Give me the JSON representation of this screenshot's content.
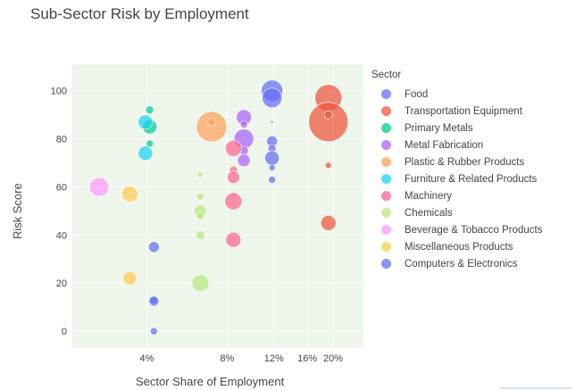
{
  "chart_data": {
    "type": "scatter",
    "title": "Sub-Sector Risk by Employment",
    "xlabel": "Sector Share of Employment",
    "ylabel": "Risk Score",
    "x_scale": "log",
    "xlim": [
      0.021,
      0.26
    ],
    "ylim": [
      -7,
      111
    ],
    "x_tick_labels": [
      {
        "value": 0.04,
        "label": "4%"
      },
      {
        "value": 0.08,
        "label": "8%"
      },
      {
        "value": 0.12,
        "label": "12%"
      },
      {
        "value": 0.16,
        "label": "16%"
      },
      {
        "value": 0.2,
        "label": "20%"
      }
    ],
    "y_ticks": [
      0,
      20,
      40,
      60,
      80,
      100
    ],
    "grid": true,
    "plot_background": "#eef5ea",
    "legend_title": "Sector",
    "legend_position": "right",
    "series": [
      {
        "name": "Food",
        "color": "#636efa",
        "points": [
          {
            "x": 0.118,
            "y": 100,
            "size": 24
          },
          {
            "x": 0.118,
            "y": 97,
            "size": 22
          },
          {
            "x": 0.118,
            "y": 79,
            "size": 12
          },
          {
            "x": 0.118,
            "y": 76,
            "size": 9
          },
          {
            "x": 0.118,
            "y": 72,
            "size": 16
          },
          {
            "x": 0.118,
            "y": 68,
            "size": 7
          },
          {
            "x": 0.118,
            "y": 63,
            "size": 8
          },
          {
            "x": 0.118,
            "y": 87,
            "size": 3
          }
        ]
      },
      {
        "name": "Transportation Equipment",
        "color": "#ef553b",
        "points": [
          {
            "x": 0.192,
            "y": 97,
            "size": 30
          },
          {
            "x": 0.192,
            "y": 87,
            "size": 44
          },
          {
            "x": 0.192,
            "y": 90,
            "size": 9
          },
          {
            "x": 0.192,
            "y": 69,
            "size": 7
          },
          {
            "x": 0.192,
            "y": 45,
            "size": 17
          }
        ]
      },
      {
        "name": "Primary Metals",
        "color": "#00cc96",
        "points": [
          {
            "x": 0.041,
            "y": 92,
            "size": 9
          },
          {
            "x": 0.041,
            "y": 85,
            "size": 16
          },
          {
            "x": 0.041,
            "y": 78,
            "size": 8
          }
        ]
      },
      {
        "name": "Metal Fabrication",
        "color": "#ab63fa",
        "points": [
          {
            "x": 0.0925,
            "y": 89,
            "size": 17
          },
          {
            "x": 0.0925,
            "y": 86,
            "size": 8
          },
          {
            "x": 0.0925,
            "y": 80,
            "size": 22
          },
          {
            "x": 0.0925,
            "y": 75,
            "size": 10
          },
          {
            "x": 0.0925,
            "y": 71,
            "size": 14
          }
        ]
      },
      {
        "name": "Plastic & Rubber Products",
        "color": "#ffa15a",
        "points": [
          {
            "x": 0.07,
            "y": 85,
            "size": 34
          },
          {
            "x": 0.07,
            "y": 87,
            "size": 9
          }
        ]
      },
      {
        "name": "Furniture & Related Products",
        "color": "#19d3f3",
        "points": [
          {
            "x": 0.0395,
            "y": 87,
            "size": 16
          },
          {
            "x": 0.0395,
            "y": 74,
            "size": 16
          }
        ]
      },
      {
        "name": "Machinery",
        "color": "#ff6692",
        "points": [
          {
            "x": 0.0845,
            "y": 76,
            "size": 18
          },
          {
            "x": 0.0845,
            "y": 67,
            "size": 9
          },
          {
            "x": 0.0845,
            "y": 64,
            "size": 14
          },
          {
            "x": 0.0845,
            "y": 57,
            "size": 5
          },
          {
            "x": 0.0845,
            "y": 54,
            "size": 19
          },
          {
            "x": 0.0845,
            "y": 38,
            "size": 17
          }
        ]
      },
      {
        "name": "Chemicals",
        "color": "#b6e880",
        "points": [
          {
            "x": 0.0635,
            "y": 65,
            "size": 6
          },
          {
            "x": 0.0635,
            "y": 56,
            "size": 8
          },
          {
            "x": 0.0635,
            "y": 50,
            "size": 14
          },
          {
            "x": 0.0635,
            "y": 48,
            "size": 9
          },
          {
            "x": 0.0635,
            "y": 40,
            "size": 10
          },
          {
            "x": 0.0635,
            "y": 20,
            "size": 19
          }
        ]
      },
      {
        "name": "Beverage & Tobacco Products",
        "color": "#ff97ff",
        "points": [
          {
            "x": 0.0265,
            "y": 60,
            "size": 21
          }
        ]
      },
      {
        "name": "Miscellaneous Products",
        "color": "#fecb52",
        "points": [
          {
            "x": 0.0345,
            "y": 57,
            "size": 18
          },
          {
            "x": 0.0345,
            "y": 22,
            "size": 15
          }
        ]
      },
      {
        "name": "Computers & Electronics",
        "color": "#636efa",
        "points": [
          {
            "x": 0.0425,
            "y": 35,
            "size": 12
          },
          {
            "x": 0.0425,
            "y": 13,
            "size": 9
          },
          {
            "x": 0.0425,
            "y": 12.5,
            "size": 11
          },
          {
            "x": 0.0425,
            "y": 0,
            "size": 8
          }
        ]
      }
    ]
  }
}
